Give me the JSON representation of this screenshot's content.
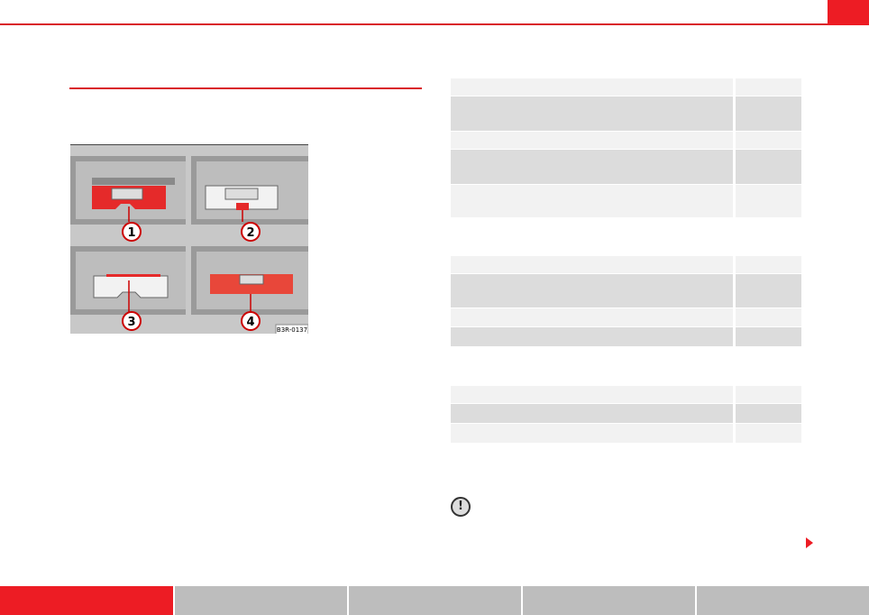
{
  "header": {
    "accent_color": "#ed1c24"
  },
  "figure": {
    "code": "B3R-0137",
    "callouts": [
      "1",
      "2",
      "3",
      "4"
    ]
  },
  "tables": [
    {
      "rows": [
        "light",
        "dark",
        "light",
        "dark",
        "light"
      ]
    },
    {
      "rows": [
        "light",
        "dark",
        "light",
        "dark"
      ]
    },
    {
      "rows": [
        "light",
        "dark",
        "light"
      ]
    }
  ],
  "notice": {
    "icon": "exclamation-circle-icon",
    "symbol": "!"
  },
  "footer": {
    "tabs": [
      "",
      "",
      "",
      "",
      ""
    ],
    "active_index": 0
  }
}
